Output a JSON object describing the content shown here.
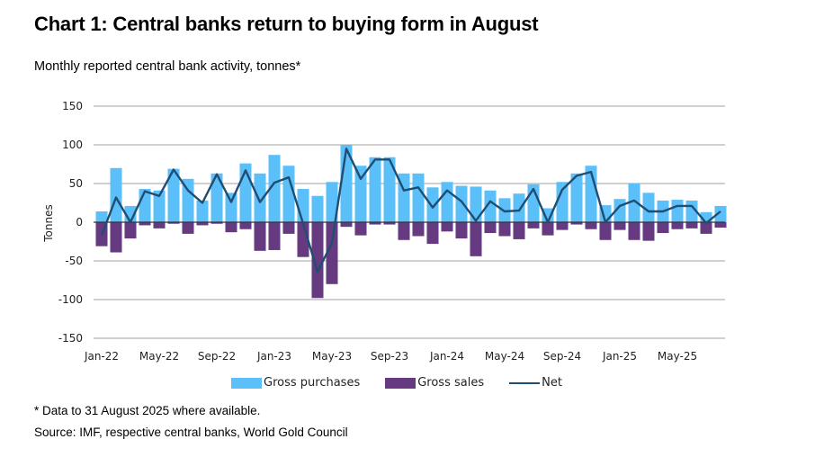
{
  "header": {
    "title": "Chart 1: Central banks return to buying form in August",
    "subtitle": "Monthly reported central bank activity, tonnes*"
  },
  "footer": {
    "footnote": "* Data to 31 August 2025 where available.",
    "source": "Source: IMF, respective central banks, World Gold Council"
  },
  "colors": {
    "purchases": "#5bbff9",
    "sales": "#663a80",
    "net": "#1f4e72",
    "grid": "#b3b3b3"
  },
  "chart_data": {
    "type": "bar",
    "title": "Chart 1: Central banks return to buying form in August",
    "subtitle": "Monthly reported central bank activity, tonnes*",
    "xlabel": "",
    "ylabel": "Tonnes",
    "ylim": [
      -150,
      150
    ],
    "yticks": [
      150,
      100,
      50,
      0,
      -50,
      -100,
      -150
    ],
    "grid": true,
    "legend_position": "bottom",
    "x_tick_labels": [
      "Jan-22",
      "May-22",
      "Sep-22",
      "Jan-23",
      "May-23",
      "Sep-23",
      "Jan-24",
      "May-24",
      "Sep-24",
      "Jan-25",
      "May-25"
    ],
    "categories": [
      "Jan-22",
      "Feb-22",
      "Mar-22",
      "Apr-22",
      "May-22",
      "Jun-22",
      "Jul-22",
      "Aug-22",
      "Sep-22",
      "Oct-22",
      "Nov-22",
      "Dec-22",
      "Jan-23",
      "Feb-23",
      "Mar-23",
      "Apr-23",
      "May-23",
      "Jun-23",
      "Jul-23",
      "Aug-23",
      "Sep-23",
      "Oct-23",
      "Nov-23",
      "Dec-23",
      "Jan-24",
      "Feb-24",
      "Mar-24",
      "Apr-24",
      "May-24",
      "Jun-24",
      "Jul-24",
      "Aug-24",
      "Sep-24",
      "Oct-24",
      "Nov-24",
      "Dec-24",
      "Jan-25",
      "Feb-25",
      "Mar-25",
      "Apr-25",
      "May-25",
      "Jun-25",
      "Jul-25",
      "Aug-25"
    ],
    "series": [
      {
        "name": "Gross purchases",
        "type": "bar",
        "values": [
          14,
          70,
          21,
          43,
          41,
          69,
          56,
          28,
          63,
          38,
          76,
          63,
          87,
          73,
          43,
          34,
          52,
          100,
          73,
          84,
          84,
          63,
          63,
          45,
          52,
          47,
          46,
          41,
          31,
          37,
          49,
          18,
          52,
          63,
          73,
          22,
          30,
          50,
          38,
          28,
          29,
          28,
          13,
          21
        ]
      },
      {
        "name": "Gross sales",
        "type": "bar",
        "values": [
          -31,
          -39,
          -21,
          -4,
          -8,
          -2,
          -15,
          -4,
          -2,
          -13,
          -9,
          -37,
          -36,
          -15,
          -45,
          -98,
          -80,
          -6,
          -17,
          -3,
          -3,
          -23,
          -18,
          -28,
          -12,
          -21,
          -44,
          -14,
          -18,
          -22,
          -8,
          -17,
          -10,
          -3,
          -9,
          -23,
          -10,
          -23,
          -24,
          -14,
          -9,
          -8,
          -15,
          -7
        ]
      },
      {
        "name": "Net",
        "type": "line",
        "values": [
          -17,
          32,
          0,
          40,
          34,
          68,
          41,
          25,
          62,
          26,
          67,
          26,
          51,
          58,
          -2,
          -64,
          -27,
          95,
          56,
          81,
          81,
          41,
          45,
          19,
          41,
          27,
          2,
          27,
          14,
          15,
          43,
          0,
          42,
          60,
          65,
          0,
          21,
          28,
          14,
          14,
          21,
          21,
          -1,
          14
        ]
      }
    ]
  }
}
